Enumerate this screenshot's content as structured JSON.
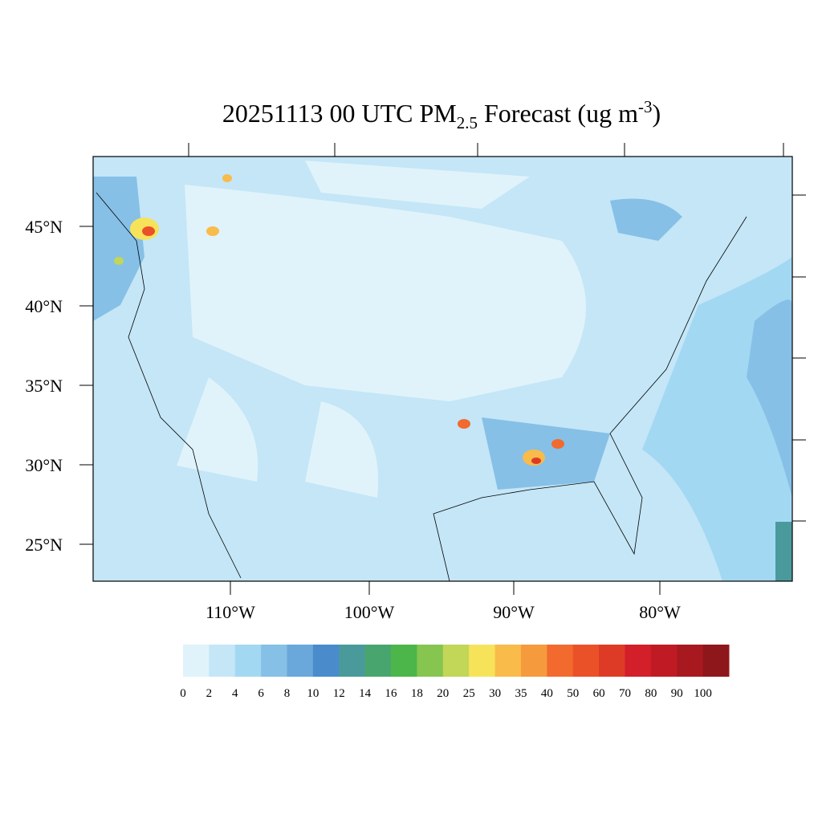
{
  "map": {
    "title": {
      "main": "20251113 00 UTC PM",
      "subscript": "2.5",
      "middle": " Forecast (ug m",
      "superscript": "-3",
      "end": ")"
    },
    "lat_labels": [
      "45°N",
      "40°N",
      "35°N",
      "30°N",
      "25°N"
    ],
    "lon_labels": [
      "110°W",
      "100°W",
      "90°W",
      "80°W"
    ]
  },
  "colorbar": {
    "labels": [
      0,
      2,
      4,
      6,
      8,
      10,
      12,
      14,
      16,
      18,
      20,
      25,
      30,
      35,
      40,
      50,
      60,
      70,
      80,
      90,
      100
    ],
    "colors": [
      "#e0f3fb",
      "#c4e6f7",
      "#a3d8f3",
      "#86c0e6",
      "#6aa7da",
      "#4a8bcc",
      "#4a9a9c",
      "#49a56e",
      "#4cb64a",
      "#86c550",
      "#c2d657",
      "#f7e35a",
      "#f9bb4a",
      "#f69a3e",
      "#f26a2e",
      "#ea5129",
      "#de3b27",
      "#d21f2a",
      "#c01b25",
      "#a8191f",
      "#8e171b"
    ]
  }
}
